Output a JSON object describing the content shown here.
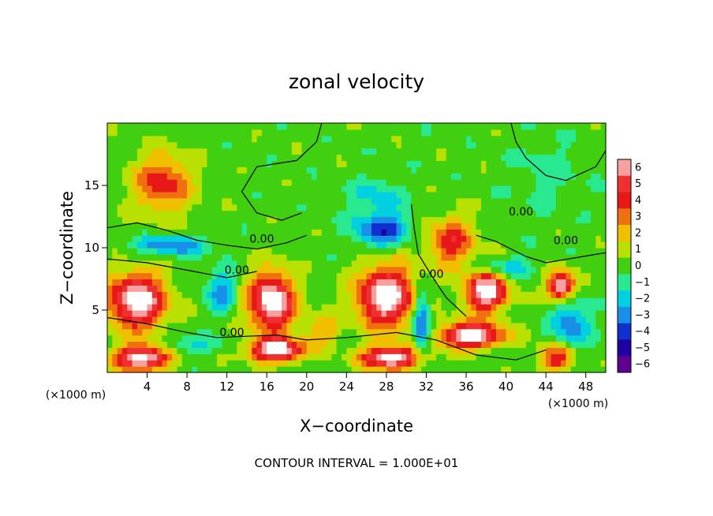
{
  "chart_data": {
    "type": "heatmap",
    "title": "zonal velocity",
    "xlabel": "X−coordinate",
    "ylabel": "Z−coordinate",
    "x_unit": "(×1000 m)",
    "y_unit": "(×1000 m)",
    "xlim": [
      0,
      50
    ],
    "ylim": [
      0,
      20
    ],
    "x_ticks": [
      4,
      8,
      12,
      16,
      20,
      24,
      28,
      32,
      36,
      40,
      44,
      48
    ],
    "y_ticks": [
      5,
      10,
      15
    ],
    "colorbar": {
      "min": -6,
      "max": 6,
      "ticks": [
        6,
        5,
        4,
        3,
        2,
        1,
        0,
        -1,
        -2,
        -3,
        -4,
        -5,
        -6
      ],
      "tick_labels": [
        "6",
        "5",
        "4",
        "3",
        "2",
        "1",
        "0",
        "−1",
        "−2",
        "−3",
        "−4",
        "−5",
        "−6"
      ],
      "colors": [
        "#f7a0a0",
        "#f03030",
        "#e81818",
        "#f07010",
        "#f0c000",
        "#b8e000",
        "#40d010",
        "#28e890",
        "#00d0e0",
        "#1890e8",
        "#1030d0",
        "#2000a0",
        "#600090"
      ]
    },
    "contour_label": "0.00",
    "contour_interval_text": "CONTOUR INTERVAL = 1.000E+01",
    "blobs": [
      {
        "x": 5.5,
        "z": 15.2,
        "r": [
          3.2,
          2.6
        ],
        "u": 4.2
      },
      {
        "x": 6.5,
        "z": 10.2,
        "r": [
          4.0,
          0.8
        ],
        "u": -3.4
      },
      {
        "x": 3.0,
        "z": 5.8,
        "r": [
          3.2,
          2.4
        ],
        "u": 7.5
      },
      {
        "x": 16.5,
        "z": 5.7,
        "r": [
          2.5,
          2.6
        ],
        "u": 7.5
      },
      {
        "x": 28.0,
        "z": 6.1,
        "r": [
          3.2,
          2.7
        ],
        "u": 7.5
      },
      {
        "x": 36.5,
        "z": 3.0,
        "r": [
          3.5,
          1.1
        ],
        "u": 7.5
      },
      {
        "x": 38.0,
        "z": 6.5,
        "r": [
          2.3,
          1.8
        ],
        "u": 7.2
      },
      {
        "x": 45.5,
        "z": 7.0,
        "r": [
          1.5,
          1.3
        ],
        "u": 7.0
      },
      {
        "x": 3.5,
        "z": 1.2,
        "r": [
          3.0,
          1.1
        ],
        "u": 7.5
      },
      {
        "x": 17.0,
        "z": 1.8,
        "r": [
          3.0,
          1.0
        ],
        "u": 7.5
      },
      {
        "x": 28.5,
        "z": 1.2,
        "r": [
          3.2,
          1.0
        ],
        "u": 7.5
      },
      {
        "x": 27.5,
        "z": 11.5,
        "r": [
          3.0,
          1.5
        ],
        "u": -4.2
      },
      {
        "x": 27.0,
        "z": 14.2,
        "r": [
          3.0,
          1.5
        ],
        "u": -1.8
      },
      {
        "x": 34.5,
        "z": 10.5,
        "r": [
          2.6,
          2.2
        ],
        "u": 4.2
      },
      {
        "x": 11.5,
        "z": 6.5,
        "r": [
          1.5,
          1.8
        ],
        "u": -3.2
      },
      {
        "x": 21.5,
        "z": 3.5,
        "r": [
          2.0,
          1.3
        ],
        "u": 2.5
      },
      {
        "x": 45.0,
        "z": 1.2,
        "r": [
          1.8,
          1.2
        ],
        "u": 4.5
      },
      {
        "x": 46.5,
        "z": 4.0,
        "r": [
          2.0,
          2.0
        ],
        "u": -3.5
      },
      {
        "x": 44.0,
        "z": 16.0,
        "r": [
          4.0,
          3.2
        ],
        "u": -0.9
      },
      {
        "x": 40.0,
        "z": 8.5,
        "r": [
          3.0,
          0.8
        ],
        "u": -2.4
      },
      {
        "x": 31.5,
        "z": 4.0,
        "r": [
          1.0,
          2.8
        ],
        "u": -4.8
      },
      {
        "x": 8.0,
        "z": 2.2,
        "r": [
          3.5,
          0.8
        ],
        "u": -1.8
      }
    ],
    "zero_contours": [
      [
        [
          0,
          11.6
        ],
        [
          3,
          12.0
        ],
        [
          6,
          11.4
        ],
        [
          9,
          10.6
        ],
        [
          12,
          10.2
        ],
        [
          15,
          9.9
        ],
        [
          18,
          10.4
        ],
        [
          20,
          11.0
        ]
      ],
      [
        [
          0,
          9.1
        ],
        [
          4,
          8.8
        ],
        [
          8,
          8.2
        ],
        [
          12,
          7.6
        ],
        [
          15,
          8.1
        ]
      ],
      [
        [
          0,
          4.4
        ],
        [
          4,
          3.9
        ],
        [
          8,
          3.2
        ],
        [
          11,
          2.8
        ],
        [
          14,
          2.9
        ],
        [
          17,
          3.0
        ],
        [
          20,
          2.6
        ],
        [
          24,
          2.8
        ],
        [
          29,
          3.2
        ],
        [
          33,
          2.6
        ],
        [
          37,
          1.4
        ],
        [
          41,
          1.0
        ],
        [
          44,
          1.8
        ]
      ],
      [
        [
          30.5,
          13.5
        ],
        [
          30.8,
          11.5
        ],
        [
          31.2,
          9.5
        ],
        [
          32.5,
          7.8
        ],
        [
          34.0,
          6.0
        ],
        [
          36.0,
          4.5
        ]
      ],
      [
        [
          37.0,
          11.0
        ],
        [
          39.0,
          10.5
        ],
        [
          42.0,
          9.3
        ],
        [
          44.0,
          8.8
        ],
        [
          47.0,
          9.2
        ],
        [
          50,
          9.6
        ]
      ],
      [
        [
          40.5,
          20
        ],
        [
          41.0,
          18.5
        ],
        [
          42.0,
          17.2
        ],
        [
          44.0,
          15.8
        ],
        [
          46.0,
          15.4
        ],
        [
          49.0,
          16.5
        ],
        [
          50,
          17.8
        ]
      ],
      [
        [
          21.5,
          20
        ],
        [
          21.0,
          18.5
        ],
        [
          19.0,
          17.0
        ],
        [
          15.0,
          16.5
        ],
        [
          13.5,
          14.5
        ],
        [
          15.0,
          12.8
        ],
        [
          17.5,
          12.2
        ],
        [
          19.5,
          12.8
        ]
      ]
    ],
    "contour_labels": [
      {
        "x": 15.5,
        "z": 10.4
      },
      {
        "x": 13.0,
        "z": 7.9
      },
      {
        "x": 12.5,
        "z": 2.9
      },
      {
        "x": 32.5,
        "z": 7.6
      },
      {
        "x": 41.5,
        "z": 12.6
      },
      {
        "x": 46.0,
        "z": 10.3
      }
    ]
  }
}
